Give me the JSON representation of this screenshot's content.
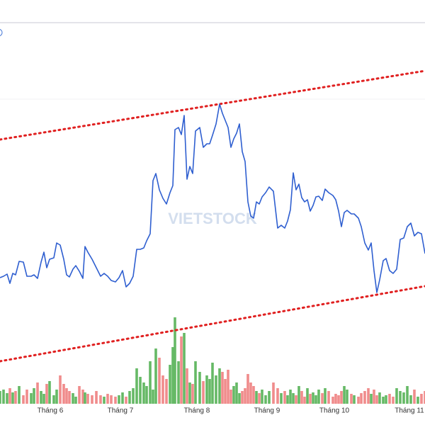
{
  "chart_data": {
    "type": "line",
    "watermark": "VIETSTOCK",
    "xlim": [
      0,
      600
    ],
    "ylim": [
      0,
      600
    ],
    "vlim": [
      0,
      570
    ],
    "xticks": [
      {
        "value": 71,
        "label": "Tháng 6"
      },
      {
        "value": 170,
        "label": "Tháng 7"
      },
      {
        "value": 278,
        "label": "Tháng 8"
      },
      {
        "value": 377,
        "label": "Tháng 9"
      },
      {
        "value": 472,
        "label": "Tháng 10"
      },
      {
        "value": 578,
        "label": "Tháng 11"
      }
    ],
    "line_color": "#2f5fd0",
    "up_color": "#66b966",
    "down_color": "#f08c8c",
    "x": [
      0,
      5,
      10,
      14,
      18,
      22,
      27,
      33,
      38,
      44,
      48,
      53,
      58,
      62,
      66,
      70,
      76,
      80,
      85,
      90,
      94,
      98,
      103,
      107,
      112,
      117,
      120,
      124,
      130,
      136,
      142,
      147,
      152,
      157,
      163,
      168,
      173,
      178,
      183,
      188,
      193,
      198,
      203,
      207,
      212,
      216,
      220,
      225,
      230,
      235,
      240,
      244,
      247,
      252,
      256,
      260,
      264,
      268,
      272,
      276,
      282,
      287,
      292,
      296,
      300,
      305,
      310,
      314,
      318,
      322,
      326,
      330,
      334,
      338,
      342,
      346,
      350,
      354,
      358,
      362,
      366,
      370,
      375,
      380,
      386,
      392,
      397,
      402,
      406,
      410,
      414,
      418,
      422,
      426,
      430,
      434,
      438,
      442,
      446,
      450,
      455,
      459,
      464,
      470,
      474,
      478,
      482,
      486,
      490,
      496,
      500,
      506,
      510,
      515,
      520,
      524,
      528,
      532,
      536,
      541,
      545,
      550,
      555,
      560,
      565,
      570,
      575,
      580,
      585,
      590,
      595,
      600
    ],
    "values": [
      208,
      210,
      213,
      200,
      214,
      212,
      231,
      230,
      210,
      210,
      212,
      207,
      230,
      244,
      222,
      234,
      236,
      257,
      254,
      234,
      212,
      209,
      220,
      225,
      217,
      207,
      252,
      244,
      234,
      222,
      210,
      214,
      210,
      204,
      202,
      208,
      218,
      195,
      200,
      210,
      248,
      248,
      250,
      260,
      270,
      345,
      355,
      332,
      320,
      312,
      328,
      338,
      417,
      420,
      410,
      437,
      347,
      365,
      355,
      415,
      420,
      392,
      397,
      397,
      409,
      425,
      453,
      440,
      430,
      420,
      392,
      404,
      412,
      425,
      386,
      372,
      315,
      295,
      292,
      315,
      312,
      322,
      328,
      336,
      330,
      278,
      282,
      278,
      288,
      304,
      356,
      332,
      340,
      321,
      315,
      318,
      302,
      310,
      322,
      323,
      317,
      333,
      328,
      324,
      318,
      302,
      280,
      300,
      303,
      298,
      298,
      292,
      280,
      257,
      247,
      257,
      218,
      187,
      205,
      232,
      235,
      218,
      214,
      220,
      262,
      264,
      280,
      285,
      267,
      272,
      270,
      242
    ],
    "volume": [
      18,
      20,
      15,
      22,
      16,
      18,
      25,
      12,
      20,
      15,
      22,
      30,
      18,
      14,
      28,
      32,
      12,
      20,
      40,
      28,
      22,
      18,
      15,
      10,
      25,
      20,
      16,
      14,
      12,
      18,
      12,
      10,
      14,
      12,
      10,
      12,
      16,
      10,
      18,
      22,
      50,
      38,
      30,
      25,
      60,
      20,
      78,
      65,
      40,
      35,
      55,
      80,
      122,
      60,
      95,
      100,
      50,
      30,
      28,
      60,
      45,
      32,
      40,
      35,
      58,
      40,
      50,
      45,
      35,
      48,
      20,
      25,
      30,
      15,
      18,
      22,
      42,
      30,
      25,
      18,
      15,
      20,
      12,
      18,
      30,
      22,
      15,
      18,
      12,
      20,
      15,
      12,
      25,
      18,
      10,
      22,
      14,
      16,
      12,
      20,
      15,
      22,
      18,
      10,
      14,
      12,
      18,
      25,
      20,
      14,
      12,
      10,
      15,
      18,
      22,
      14,
      20,
      12,
      16,
      10,
      12,
      14,
      10,
      22,
      18,
      16,
      25,
      12,
      20,
      10,
      14,
      18
    ],
    "trend_color": "#e02020",
    "trendlines": [
      {
        "x": [
          0,
          600
        ],
        "values": [
          403,
          500
        ]
      },
      {
        "x": [
          0,
          600
        ],
        "values": [
          90,
          196
        ]
      }
    ]
  }
}
